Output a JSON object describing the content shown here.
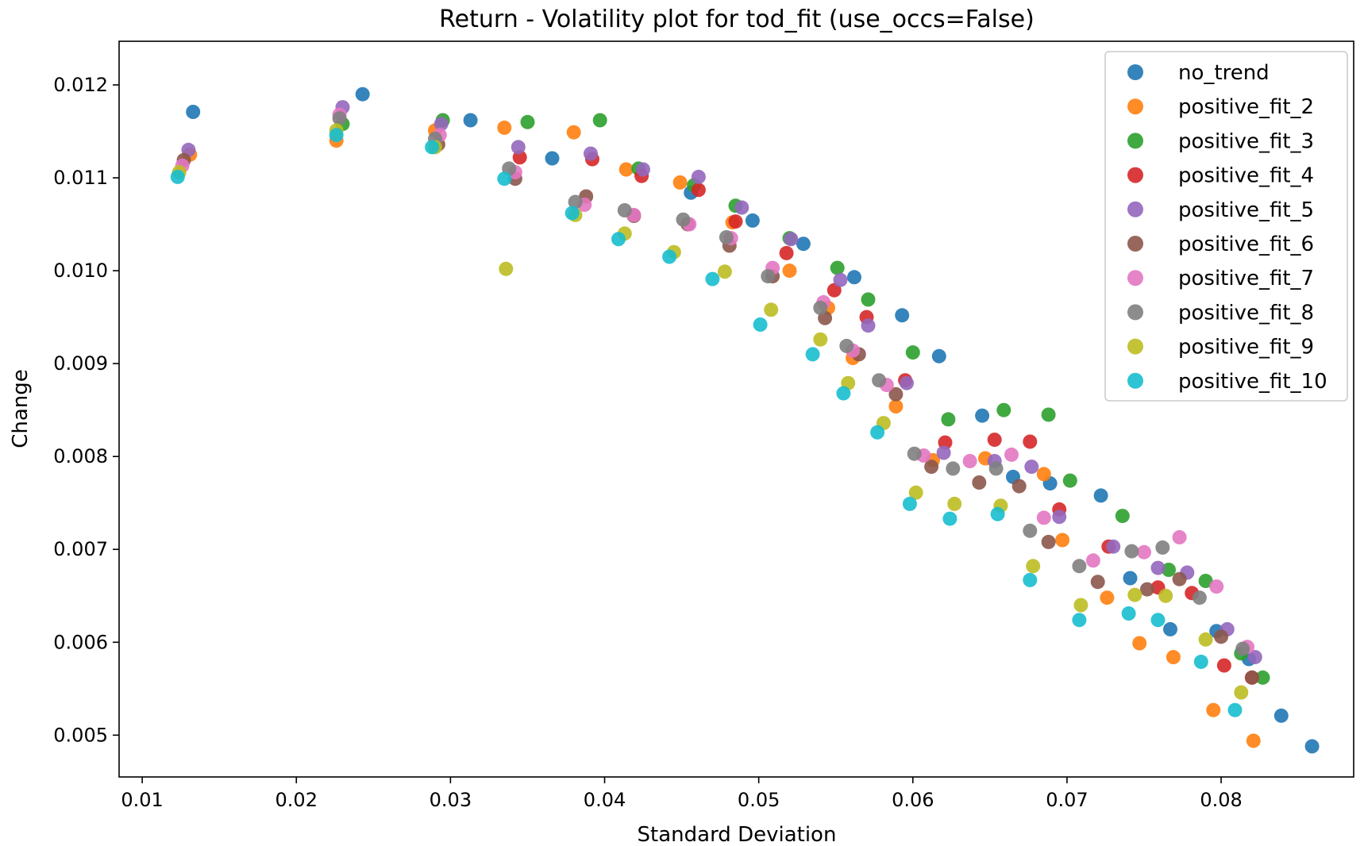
{
  "chart_data": {
    "type": "scatter",
    "title": "Return - Volatility plot for tod_fit (use_occs=False)",
    "xlabel": "Standard Deviation",
    "ylabel": "Change",
    "xlim": [
      0.0085,
      0.0886
    ],
    "ylim": [
      0.00455,
      0.01247
    ],
    "xticks": [
      0.01,
      0.02,
      0.03,
      0.04,
      0.05,
      0.06,
      0.07,
      0.08
    ],
    "xtick_labels": [
      "0.01",
      "0.02",
      "0.03",
      "0.04",
      "0.05",
      "0.06",
      "0.07",
      "0.08"
    ],
    "yticks": [
      0.005,
      0.006,
      0.007,
      0.008,
      0.009,
      0.01,
      0.011,
      0.012
    ],
    "ytick_labels": [
      "0.005",
      "0.006",
      "0.007",
      "0.008",
      "0.009",
      "0.010",
      "0.011",
      "0.012"
    ],
    "grid": false,
    "legend_position": "top-right",
    "series": [
      {
        "name": "no_trend",
        "color": "#1f77b4",
        "points": [
          [
            0.0133,
            0.01171
          ],
          [
            0.0243,
            0.0119
          ],
          [
            0.0313,
            0.01162
          ],
          [
            0.0366,
            0.01121
          ],
          [
            0.0456,
            0.01084
          ],
          [
            0.0496,
            0.01054
          ],
          [
            0.0529,
            0.01029
          ],
          [
            0.0562,
            0.00993
          ],
          [
            0.0593,
            0.00952
          ],
          [
            0.0617,
            0.00908
          ],
          [
            0.0645,
            0.00844
          ],
          [
            0.0665,
            0.00778
          ],
          [
            0.0689,
            0.00771
          ],
          [
            0.0722,
            0.00758
          ],
          [
            0.0741,
            0.00669
          ],
          [
            0.0767,
            0.00614
          ],
          [
            0.0797,
            0.00612
          ],
          [
            0.0818,
            0.00582
          ],
          [
            0.0839,
            0.00521
          ],
          [
            0.0859,
            0.00488
          ]
        ]
      },
      {
        "name": "positive_fit_2",
        "color": "#ff7f0e",
        "points": [
          [
            0.0131,
            0.01125
          ],
          [
            0.0226,
            0.0114
          ],
          [
            0.029,
            0.01151
          ],
          [
            0.0335,
            0.01154
          ],
          [
            0.038,
            0.01149
          ],
          [
            0.0414,
            0.01109
          ],
          [
            0.0449,
            0.01095
          ],
          [
            0.0483,
            0.01052
          ],
          [
            0.052,
            0.01
          ],
          [
            0.0545,
            0.0096
          ],
          [
            0.0561,
            0.00906
          ],
          [
            0.0589,
            0.00854
          ],
          [
            0.0613,
            0.00796
          ],
          [
            0.0647,
            0.00798
          ],
          [
            0.0685,
            0.00781
          ],
          [
            0.0697,
            0.0071
          ],
          [
            0.0726,
            0.00648
          ],
          [
            0.0747,
            0.00599
          ],
          [
            0.0769,
            0.00584
          ],
          [
            0.0795,
            0.00527
          ],
          [
            0.0821,
            0.00494
          ]
        ]
      },
      {
        "name": "positive_fit_3",
        "color": "#2ca02c",
        "points": [
          [
            0.023,
            0.01158
          ],
          [
            0.0295,
            0.01162
          ],
          [
            0.035,
            0.0116
          ],
          [
            0.0397,
            0.01162
          ],
          [
            0.0422,
            0.0111
          ],
          [
            0.0458,
            0.01092
          ],
          [
            0.0485,
            0.0107
          ],
          [
            0.052,
            0.01035
          ],
          [
            0.0551,
            0.01003
          ],
          [
            0.0571,
            0.00969
          ],
          [
            0.06,
            0.00912
          ],
          [
            0.0623,
            0.0084
          ],
          [
            0.0659,
            0.0085
          ],
          [
            0.0688,
            0.00845
          ],
          [
            0.0702,
            0.00774
          ],
          [
            0.0736,
            0.00736
          ],
          [
            0.0766,
            0.00678
          ],
          [
            0.079,
            0.00666
          ],
          [
            0.0813,
            0.00588
          ],
          [
            0.0827,
            0.00562
          ]
        ]
      },
      {
        "name": "positive_fit_4",
        "color": "#d62728",
        "points": [
          [
            0.0345,
            0.01122
          ],
          [
            0.0392,
            0.0112
          ],
          [
            0.0424,
            0.01102
          ],
          [
            0.0461,
            0.01087
          ],
          [
            0.0485,
            0.01053
          ],
          [
            0.0518,
            0.01019
          ],
          [
            0.0549,
            0.00979
          ],
          [
            0.057,
            0.0095
          ],
          [
            0.0595,
            0.00882
          ],
          [
            0.0621,
            0.00815
          ],
          [
            0.0653,
            0.00818
          ],
          [
            0.0676,
            0.00816
          ],
          [
            0.0695,
            0.00743
          ],
          [
            0.0727,
            0.00703
          ],
          [
            0.0759,
            0.00659
          ],
          [
            0.0781,
            0.00653
          ],
          [
            0.0802,
            0.00575
          ],
          [
            0.082,
            0.00562
          ]
        ]
      },
      {
        "name": "positive_fit_5",
        "color": "#9467bd",
        "points": [
          [
            0.013,
            0.0113
          ],
          [
            0.023,
            0.01176
          ],
          [
            0.0294,
            0.01158
          ],
          [
            0.0344,
            0.01133
          ],
          [
            0.0391,
            0.01126
          ],
          [
            0.0425,
            0.01109
          ],
          [
            0.0461,
            0.01101
          ],
          [
            0.0489,
            0.01068
          ],
          [
            0.0521,
            0.01034
          ],
          [
            0.0553,
            0.0099
          ],
          [
            0.0571,
            0.00941
          ],
          [
            0.0596,
            0.00879
          ],
          [
            0.062,
            0.00804
          ],
          [
            0.0653,
            0.00795
          ],
          [
            0.0677,
            0.00789
          ],
          [
            0.0695,
            0.00735
          ],
          [
            0.073,
            0.00703
          ],
          [
            0.0759,
            0.0068
          ],
          [
            0.0778,
            0.00675
          ],
          [
            0.0804,
            0.00614
          ],
          [
            0.0822,
            0.00584
          ]
        ]
      },
      {
        "name": "positive_fit_6",
        "color": "#8c564b",
        "points": [
          [
            0.0127,
            0.01119
          ],
          [
            0.0292,
            0.01136
          ],
          [
            0.0342,
            0.01099
          ],
          [
            0.0388,
            0.0108
          ],
          [
            0.0419,
            0.01059
          ],
          [
            0.0454,
            0.0105
          ],
          [
            0.0481,
            0.01027
          ],
          [
            0.0509,
            0.00994
          ],
          [
            0.0543,
            0.00949
          ],
          [
            0.0565,
            0.0091
          ],
          [
            0.0589,
            0.00867
          ],
          [
            0.0612,
            0.00789
          ],
          [
            0.0643,
            0.00772
          ],
          [
            0.0669,
            0.00768
          ],
          [
            0.0688,
            0.00708
          ],
          [
            0.072,
            0.00665
          ],
          [
            0.0752,
            0.00657
          ],
          [
            0.0773,
            0.00668
          ],
          [
            0.08,
            0.00606
          ],
          [
            0.082,
            0.00562
          ]
        ]
      },
      {
        "name": "positive_fit_7",
        "color": "#e377c2",
        "points": [
          [
            0.0126,
            0.01113
          ],
          [
            0.0228,
            0.01168
          ],
          [
            0.0293,
            0.01146
          ],
          [
            0.0342,
            0.01106
          ],
          [
            0.0387,
            0.01071
          ],
          [
            0.0419,
            0.0106
          ],
          [
            0.0455,
            0.0105
          ],
          [
            0.0482,
            0.01035
          ],
          [
            0.0509,
            0.01003
          ],
          [
            0.0542,
            0.00966
          ],
          [
            0.0561,
            0.00914
          ],
          [
            0.0583,
            0.00877
          ],
          [
            0.0607,
            0.00801
          ],
          [
            0.0637,
            0.00795
          ],
          [
            0.0664,
            0.00802
          ],
          [
            0.0685,
            0.00734
          ],
          [
            0.0717,
            0.00688
          ],
          [
            0.075,
            0.00697
          ],
          [
            0.0773,
            0.00713
          ],
          [
            0.0797,
            0.0066
          ],
          [
            0.0817,
            0.00595
          ]
        ]
      },
      {
        "name": "positive_fit_8",
        "color": "#7f7f7f",
        "points": [
          [
            0.0228,
            0.01164
          ],
          [
            0.029,
            0.01142
          ],
          [
            0.0338,
            0.0111
          ],
          [
            0.0381,
            0.01074
          ],
          [
            0.0413,
            0.01065
          ],
          [
            0.0451,
            0.01055
          ],
          [
            0.0479,
            0.01036
          ],
          [
            0.0506,
            0.00994
          ],
          [
            0.054,
            0.0096
          ],
          [
            0.0557,
            0.00919
          ],
          [
            0.0578,
            0.00882
          ],
          [
            0.0601,
            0.00803
          ],
          [
            0.0626,
            0.00787
          ],
          [
            0.0654,
            0.00787
          ],
          [
            0.0676,
            0.0072
          ],
          [
            0.0708,
            0.00682
          ],
          [
            0.0742,
            0.00698
          ],
          [
            0.0762,
            0.00702
          ],
          [
            0.0786,
            0.00648
          ],
          [
            0.0814,
            0.00593
          ]
        ]
      },
      {
        "name": "positive_fit_9",
        "color": "#bcbd22",
        "points": [
          [
            0.0124,
            0.01106
          ],
          [
            0.0226,
            0.01151
          ],
          [
            0.029,
            0.01133
          ],
          [
            0.0336,
            0.01002
          ],
          [
            0.0381,
            0.0106
          ],
          [
            0.0413,
            0.0104
          ],
          [
            0.0445,
            0.0102
          ],
          [
            0.0478,
            0.00999
          ],
          [
            0.0508,
            0.00958
          ],
          [
            0.054,
            0.00926
          ],
          [
            0.0558,
            0.00879
          ],
          [
            0.0581,
            0.00836
          ],
          [
            0.0602,
            0.00761
          ],
          [
            0.0627,
            0.00749
          ],
          [
            0.0657,
            0.00747
          ],
          [
            0.0678,
            0.00682
          ],
          [
            0.0709,
            0.0064
          ],
          [
            0.0744,
            0.00651
          ],
          [
            0.0764,
            0.0065
          ],
          [
            0.079,
            0.00603
          ],
          [
            0.0813,
            0.00546
          ]
        ]
      },
      {
        "name": "positive_fit_10",
        "color": "#17becf",
        "points": [
          [
            0.0123,
            0.01101
          ],
          [
            0.0226,
            0.01146
          ],
          [
            0.0288,
            0.01133
          ],
          [
            0.0335,
            0.01099
          ],
          [
            0.0379,
            0.01062
          ],
          [
            0.0409,
            0.01034
          ],
          [
            0.0442,
            0.01015
          ],
          [
            0.047,
            0.00991
          ],
          [
            0.0501,
            0.00942
          ],
          [
            0.0535,
            0.0091
          ],
          [
            0.0555,
            0.00868
          ],
          [
            0.0577,
            0.00826
          ],
          [
            0.0598,
            0.00749
          ],
          [
            0.0624,
            0.00733
          ],
          [
            0.0655,
            0.00738
          ],
          [
            0.0676,
            0.00667
          ],
          [
            0.0708,
            0.00624
          ],
          [
            0.074,
            0.00631
          ],
          [
            0.0759,
            0.00624
          ],
          [
            0.0787,
            0.00579
          ],
          [
            0.0809,
            0.00527
          ]
        ]
      }
    ]
  }
}
